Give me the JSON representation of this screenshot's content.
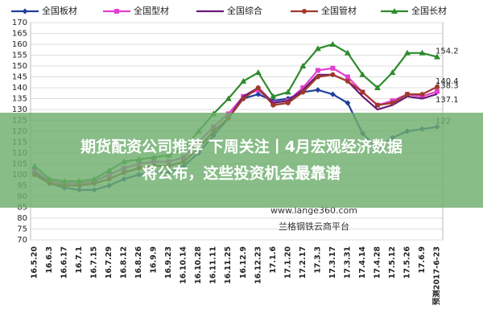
{
  "chart_data": {
    "type": "line",
    "categories": [
      "16.5.20",
      "16.6.3",
      "16.6.17",
      "16.7.1",
      "16.7.15",
      "16.7.29",
      "16.8.12",
      "16.8.26",
      "16.9.9",
      "16.9.23",
      "16.10.14",
      "16.10.28",
      "16.11.11",
      "16.11.25",
      "16.12.9",
      "16.12.23",
      "17.1.6",
      "17.1.20",
      "17.2.17",
      "17.3.3",
      "17.3.17",
      "17.3.31",
      "17.4.14",
      "17.4.28",
      "17.5.12",
      "17.5.26",
      "17.6.9",
      "预测2017-6-23"
    ],
    "series": [
      {
        "name": "全国板材",
        "color": "#1f3f9a",
        "marker": "diamond",
        "values": [
          101,
          96,
          94,
          93,
          93,
          95,
          98,
          100,
          101,
          101,
          104,
          110,
          118,
          126,
          135,
          137,
          134,
          135,
          138,
          139,
          137,
          133,
          119,
          112,
          117,
          120,
          121,
          122
        ]
      },
      {
        "name": "全国型材",
        "color": "#e33fd0",
        "marker": "square",
        "values": [
          102,
          97,
          96,
          96,
          97,
          100,
          103,
          105,
          106,
          106,
          108,
          115,
          122,
          128,
          136,
          139,
          133,
          134,
          140,
          148,
          149,
          145,
          138,
          132,
          134,
          137,
          136,
          138.3
        ]
      },
      {
        "name": "全国综合",
        "color": "#6a1a7a",
        "marker": "none",
        "values": [
          100,
          96,
          95,
          95,
          96,
          98,
          101,
          103,
          104,
          104,
          106,
          112,
          120,
          126,
          136,
          140,
          133,
          134,
          139,
          146,
          146,
          143,
          136,
          130,
          132,
          136,
          135,
          137.1
        ]
      },
      {
        "name": "全国管材",
        "color": "#a0392a",
        "marker": "circle",
        "values": [
          100,
          96,
          95,
          95,
          96,
          98,
          101,
          103,
          104,
          104,
          106,
          112,
          120,
          126,
          135,
          140,
          132,
          133,
          138,
          145,
          146,
          143,
          138,
          132,
          133,
          137,
          137,
          140.4
        ]
      },
      {
        "name": "全国长材",
        "color": "#2e8b2e",
        "marker": "triangle",
        "values": [
          104,
          98,
          97,
          97,
          98,
          102,
          106,
          107,
          108,
          109,
          112,
          120,
          128,
          135,
          143,
          147,
          136,
          138,
          150,
          158,
          160,
          156,
          146,
          140,
          147,
          156,
          156,
          154.2
        ]
      }
    ],
    "ylim": [
      70,
      170
    ],
    "yticks": [
      70,
      75,
      80,
      85,
      90,
      95,
      100,
      105,
      110,
      115,
      120,
      125,
      130,
      135,
      140,
      145,
      150,
      155,
      160,
      165,
      170
    ],
    "grid": true,
    "legend": "top",
    "annotations": [
      "www.lange360.com",
      "兰格钢铁云商平台"
    ],
    "banner": [
      "期货配资公司推荐 下周关注丨4月宏观经济数据",
      "将公布，这些投资机会最靠谱"
    ]
  }
}
